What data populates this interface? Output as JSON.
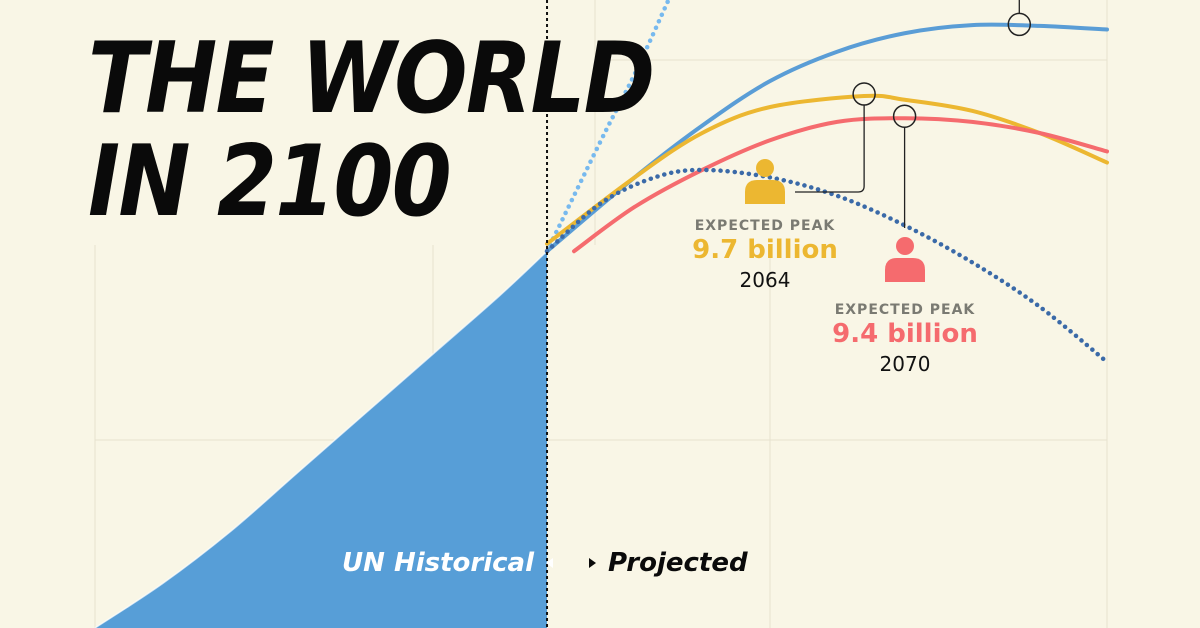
{
  "title": {
    "line1": "THE WORLD",
    "line2": "IN 2100"
  },
  "colors": {
    "background": "#f9f6e6",
    "historical_fill": "#579ed7",
    "blue": "#5a9dd6",
    "light_blue_dotted": "#77b9ee",
    "navy_dotted": "#3b6aa8",
    "yellow": "#ecb731",
    "coral": "#f56b6e",
    "text": "#0a0a0a"
  },
  "peaks": [
    {
      "label": "EXPECTED PEAK",
      "value": "9.7 billion",
      "year": "2064",
      "color": "#ecb731",
      "icon": "person-icon"
    },
    {
      "label": "EXPECTED PEAK",
      "value": "9.4 billion",
      "year": "2070",
      "color": "#f56b6e",
      "icon": "person-icon"
    }
  ],
  "eras": {
    "historical": "UN Historical",
    "projected": "Projected"
  },
  "chart_data": {
    "type": "line",
    "xlim": [
      1950,
      2100
    ],
    "ylim": [
      2.5,
      11.0
    ],
    "grid": true,
    "historical": {
      "x": [
        1950,
        1960,
        1970,
        1980,
        1990,
        2000,
        2010,
        2017
      ],
      "values": [
        2.5,
        3.1,
        3.8,
        4.6,
        5.4,
        6.2,
        7.0,
        7.6
      ]
    },
    "series": [
      {
        "key": "light_blue_dotted",
        "style": "dotted",
        "x": [
          2017,
          2025,
          2030,
          2035
        ],
        "values": [
          7.6,
          9.1,
          10.0,
          11.0
        ]
      },
      {
        "key": "blue",
        "style": "solid",
        "x": [
          2017,
          2030,
          2040,
          2050,
          2060,
          2070,
          2080,
          2090,
          2100
        ],
        "values": [
          7.6,
          8.6,
          9.3,
          9.9,
          10.3,
          10.55,
          10.66,
          10.65,
          10.6
        ]
      },
      {
        "key": "yellow",
        "style": "solid",
        "x": [
          2017,
          2030,
          2040,
          2050,
          2064,
          2070,
          2080,
          2090,
          2100
        ],
        "values": [
          7.7,
          8.6,
          9.2,
          9.55,
          9.7,
          9.65,
          9.5,
          9.2,
          8.8
        ]
      },
      {
        "key": "coral",
        "style": "solid",
        "x": [
          2021,
          2030,
          2040,
          2050,
          2060,
          2070,
          2080,
          2090,
          2100
        ],
        "values": [
          7.6,
          8.2,
          8.7,
          9.1,
          9.35,
          9.4,
          9.35,
          9.2,
          8.95
        ]
      },
      {
        "key": "navy_dotted",
        "style": "dotted",
        "x": [
          2017,
          2025,
          2033,
          2040,
          2050,
          2060,
          2070,
          2080,
          2090,
          2100
        ],
        "values": [
          7.6,
          8.25,
          8.6,
          8.7,
          8.6,
          8.35,
          7.95,
          7.45,
          6.85,
          6.1
        ]
      }
    ],
    "peak_markers": [
      {
        "key": "blue",
        "x": 2087,
        "y": 10.67
      },
      {
        "key": "yellow",
        "x": 2064,
        "y": 9.7
      },
      {
        "key": "coral",
        "x": 2070,
        "y": 9.4
      }
    ],
    "divider_x": 2017
  }
}
